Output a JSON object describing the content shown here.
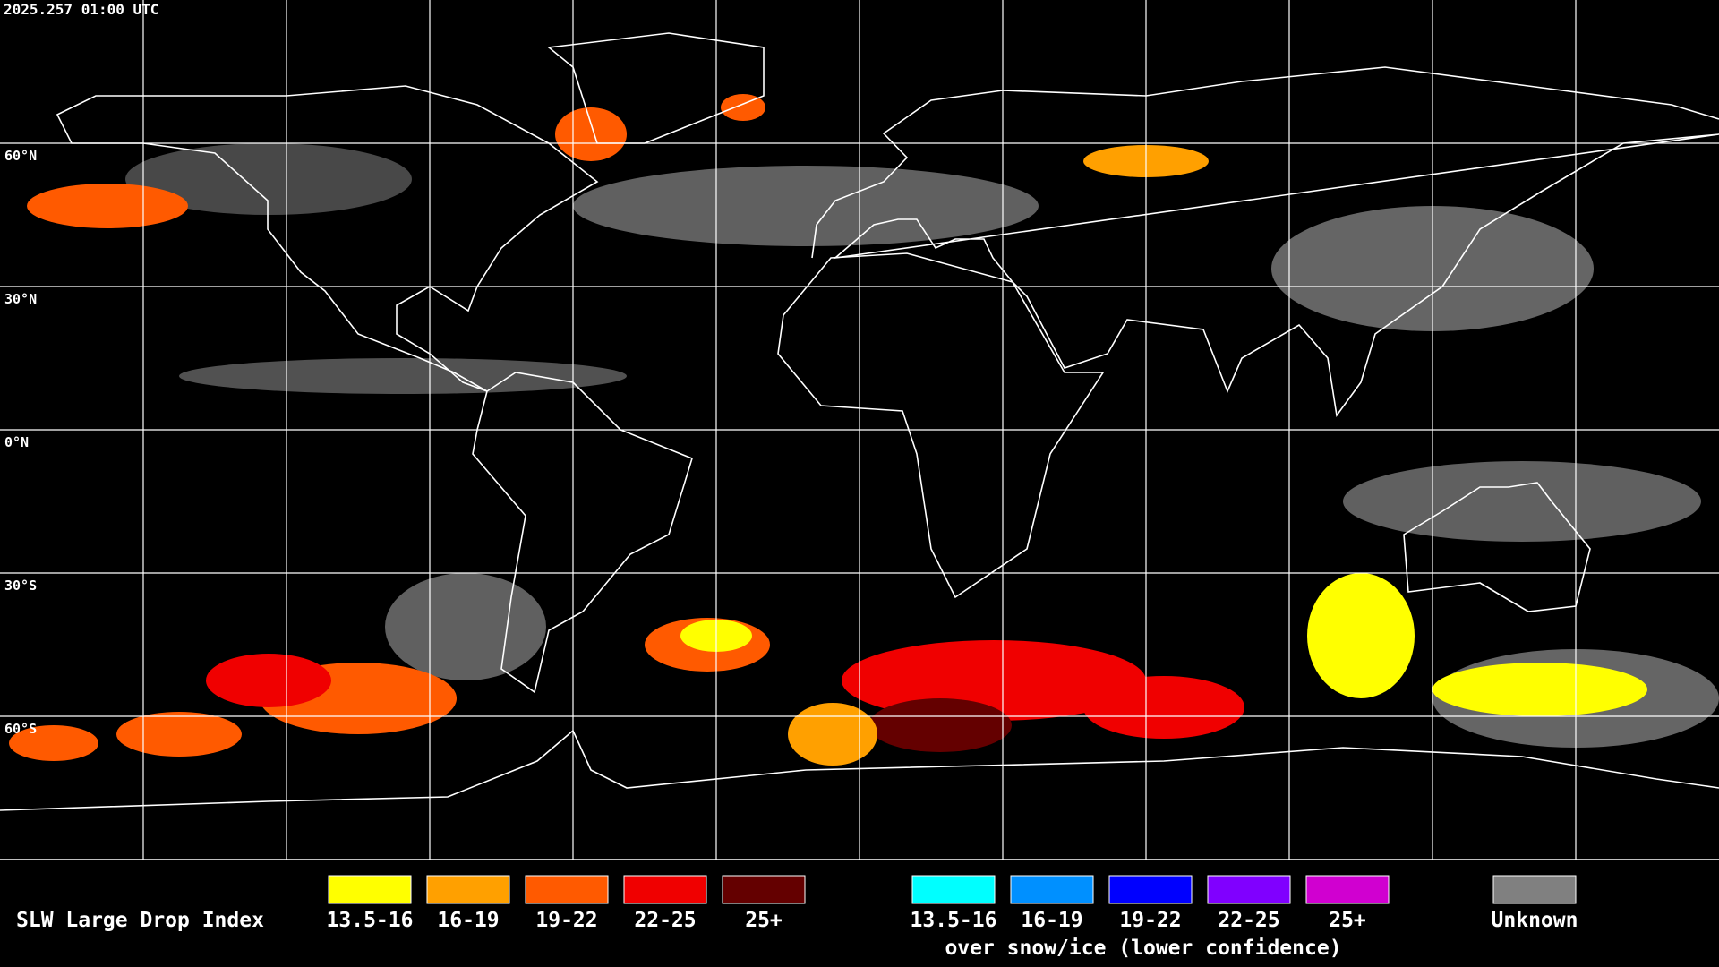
{
  "header": {
    "timestamp": "2025.257 01:00 UTC"
  },
  "map": {
    "lat_labels": [
      "60°N",
      "30°N",
      "0°N",
      "30°S",
      "60°S"
    ]
  },
  "legend": {
    "title": "SLW Large Drop Index",
    "bins": [
      {
        "label": "13.5-16",
        "color": "#ffff00"
      },
      {
        "label": "16-19",
        "color": "#ffa000"
      },
      {
        "label": "19-22",
        "color": "#ff5a00"
      },
      {
        "label": "22-25",
        "color": "#f00000"
      },
      {
        "label": "25+",
        "color": "#640000"
      }
    ],
    "snow_ice_bins": [
      {
        "label": "13.5-16",
        "color": "#00ffff"
      },
      {
        "label": "16-19",
        "color": "#0090ff"
      },
      {
        "label": "19-22",
        "color": "#0000ff"
      },
      {
        "label": "22-25",
        "color": "#8000ff"
      },
      {
        "label": "25+",
        "color": "#d000d0"
      }
    ],
    "snow_ice_caption": "over snow/ice (lower confidence)",
    "unknown": {
      "label": "Unknown",
      "color": "#808080"
    }
  }
}
